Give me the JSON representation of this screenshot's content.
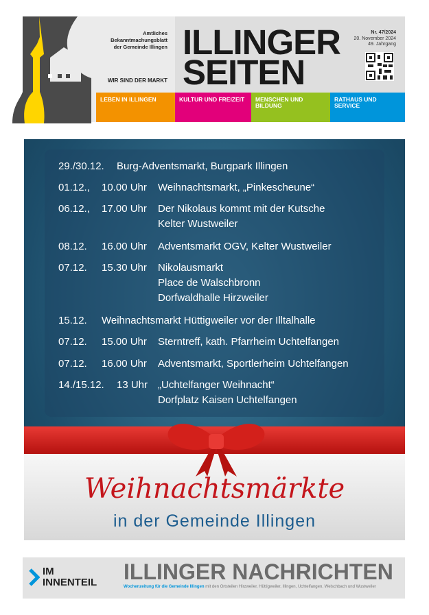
{
  "header": {
    "masthead_lines": [
      "Amtliches",
      "Bekanntmachungsblatt",
      "der Gemeinde Illingen"
    ],
    "slogan": "WIR SIND DER MARKT",
    "title_line1": "ILLINGER",
    "title_line2": "SEITEN",
    "issue": "Nr. 47/2024",
    "date": "20. November 2024",
    "volume": "49. Jahrgang"
  },
  "categories": [
    {
      "label": "LEBEN IN ILLINGEN",
      "color": "#f39200"
    },
    {
      "label": "KULTUR UND FREIZEIT",
      "color": "#e2007a"
    },
    {
      "label": "MENSCHEN UND BILDUNG",
      "color": "#95c11f"
    },
    {
      "label": "RATHAUS UND SERVICE",
      "color": "#0095db"
    }
  ],
  "events": [
    {
      "date": "29./30.12.",
      "time": "",
      "text": [
        "Burg-Adventsmarkt, Burgpark Illingen"
      ]
    },
    {
      "date": "01.12.,",
      "time": "10.00 Uhr",
      "text": [
        "Weihnachtsmarkt, „Pinkescheune“"
      ]
    },
    {
      "date": "06.12.,",
      "time": "17.00 Uhr",
      "text": [
        "Der Nikolaus kommt mit der Kutsche",
        "Kelter Wustweiler"
      ]
    },
    {
      "date": "08.12.",
      "time": "16.00 Uhr",
      "text": [
        "Adventsmarkt OGV, Kelter Wustweiler"
      ]
    },
    {
      "date": "07.12.",
      "time": "15.30 Uhr",
      "text": [
        "Nikolausmarkt",
        "Place de Walschbronn",
        "Dorfwaldhalle Hirzweiler"
      ]
    },
    {
      "date": "15.12.",
      "time": "",
      "text": [
        "Weihnachtsmarkt Hüttigweiler vor der Illtalhalle"
      ]
    },
    {
      "date": "07.12.",
      "time": "15.00 Uhr",
      "text": [
        "Sterntreff, kath. Pfarrheim Uchtelfangen"
      ]
    },
    {
      "date": "07.12.",
      "time": "16.00 Uhr",
      "text": [
        "Adventsmarkt, Sportlerheim Uchtelfangen"
      ]
    },
    {
      "date": "14./15.12.",
      "time": "13 Uhr",
      "text": [
        "„Uchtelfanger Weihnacht“",
        "Dorfplatz Kaisen Uchtelfangen"
      ]
    }
  ],
  "poster": {
    "script_title": "Weihnachtsmärkte",
    "subtitle": "in der Gemeinde Illingen"
  },
  "banner": {
    "label_line1": "IM",
    "label_line2": "INNENTEIL",
    "title": "ILLINGER NACHRICHTEN",
    "tagline_highlight": "Wochenzeitung für die Gemeinde Illingen",
    "tagline_rest": " mit den Ortsteilen Hirzweiler, Hüttigweiler, Illingen, Uchtelfangen, Welschbach und Wustweiler"
  }
}
